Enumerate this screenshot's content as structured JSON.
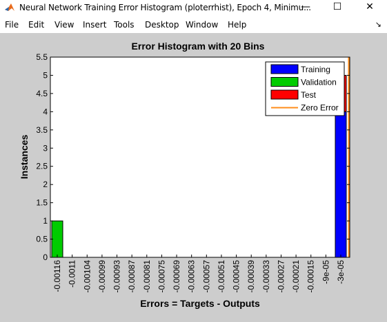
{
  "window": {
    "title": "Neural Network Training Error Histogram (ploterrhist), Epoch 4, Minimu...",
    "minimize_glyph": "—",
    "maximize_glyph": "☐",
    "close_glyph": "✕"
  },
  "menu": {
    "items": [
      "File",
      "Edit",
      "View",
      "Insert",
      "Tools",
      "Desktop",
      "Window",
      "Help"
    ],
    "dock_glyph": "↘"
  },
  "colors": {
    "training": "#0000ff",
    "validation": "#00cc00",
    "test": "#ff0000",
    "zero_error": "#ff8c1a",
    "figure_bg": "#cdcdcd"
  },
  "chart_data": {
    "type": "bar",
    "title": "Error Histogram with 20 Bins",
    "xlabel": "Errors = Targets - Outputs",
    "ylabel": "Instances",
    "ylim": [
      0,
      5.5
    ],
    "y_ticks": [
      "0",
      "0.5",
      "1",
      "1.5",
      "2",
      "2.5",
      "3",
      "3.5",
      "4",
      "4.5",
      "5",
      "5.5"
    ],
    "categories": [
      "-0.00116",
      "-0.0011",
      "-0.00104",
      "-0.00099",
      "-0.00093",
      "-0.00087",
      "-0.00081",
      "-0.00075",
      "-0.00069",
      "-0.00063",
      "-0.00057",
      "-0.00051",
      "-0.00045",
      "-0.00039",
      "-0.00033",
      "-0.00027",
      "-0.00021",
      "-0.00015",
      "-9e-05",
      "-3e-05"
    ],
    "series": [
      {
        "name": "Training",
        "values": [
          0,
          0,
          0,
          0,
          0,
          0,
          0,
          0,
          0,
          0,
          0,
          0,
          0,
          0,
          0,
          0,
          0,
          0,
          0,
          4
        ]
      },
      {
        "name": "Validation",
        "values": [
          1,
          0,
          0,
          0,
          0,
          0,
          0,
          0,
          0,
          0,
          0,
          0,
          0,
          0,
          0,
          0,
          0,
          0,
          0,
          0
        ]
      },
      {
        "name": "Test",
        "values": [
          0,
          0,
          0,
          0,
          0,
          0,
          0,
          0,
          0,
          0,
          0,
          0,
          0,
          0,
          0,
          0,
          0,
          0,
          0,
          1
        ]
      }
    ],
    "zero_error_line": {
      "name": "Zero Error",
      "x": 0
    },
    "legend": [
      "Training",
      "Validation",
      "Test",
      "Zero Error"
    ],
    "legend_position": "top-right",
    "grid": false
  }
}
